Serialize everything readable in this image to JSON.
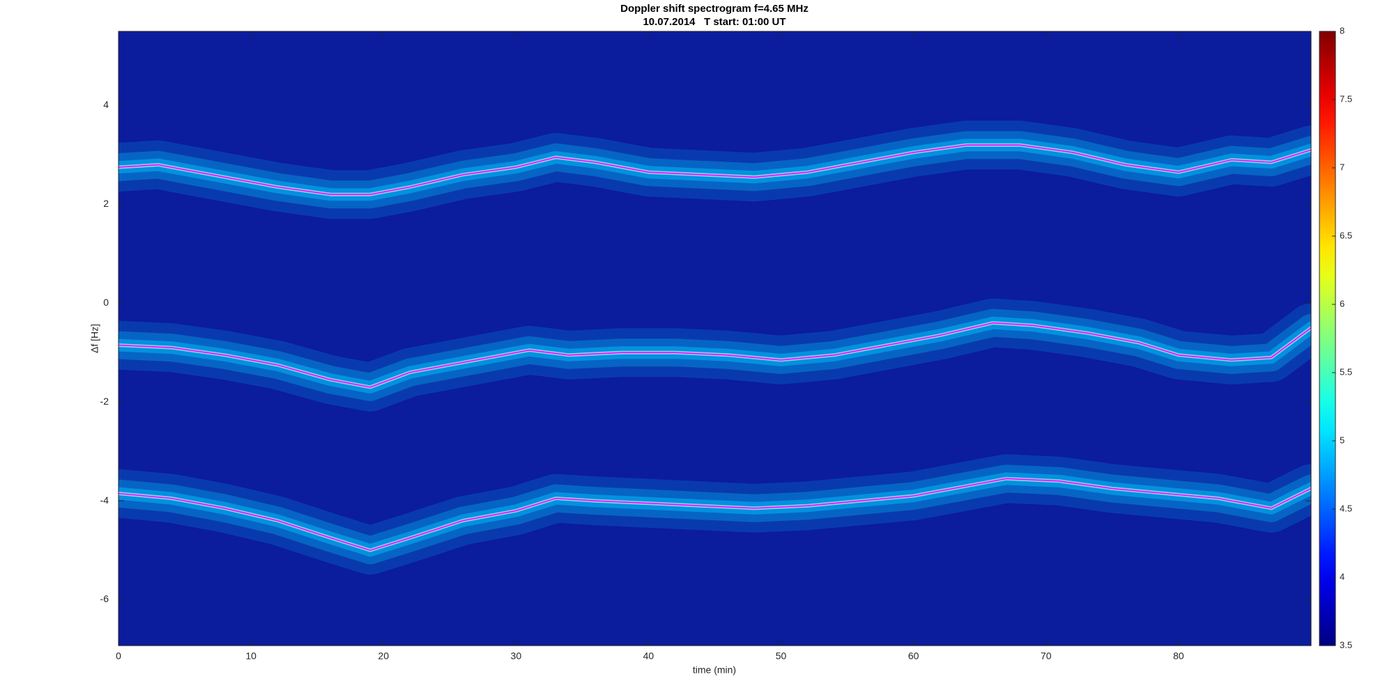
{
  "chart_data": {
    "type": "spectrogram",
    "title": "Doppler shift spectrogram f=4.65 MHz",
    "subtitle": "10.07.2014   T start: 01:00 UT",
    "x_label": "time (min)",
    "y_label": "Δf [Hz]",
    "xlim": [
      0,
      90
    ],
    "xticks": [
      0,
      10,
      20,
      30,
      40,
      50,
      60,
      70,
      80
    ],
    "ylim": [
      -6.93,
      5.5
    ],
    "yticks": [
      -6,
      -4,
      -2,
      0,
      2,
      4
    ],
    "line_color": "#ff00ff",
    "band_color": "#00c8ff",
    "series": [
      {
        "x": [
          0,
          3,
          5,
          8,
          12,
          16,
          19,
          22,
          26,
          30,
          33,
          36,
          40,
          44,
          48,
          52,
          56,
          60,
          64,
          68,
          72,
          76,
          80,
          84,
          87,
          90
        ],
        "values": [
          2.75,
          2.8,
          2.7,
          2.55,
          2.35,
          2.2,
          2.2,
          2.35,
          2.6,
          2.75,
          2.95,
          2.85,
          2.65,
          2.6,
          2.55,
          2.65,
          2.85,
          3.05,
          3.2,
          3.2,
          3.05,
          2.8,
          2.65,
          2.9,
          2.85,
          3.1
        ]
      },
      {
        "x": [
          0,
          4,
          8,
          12,
          16,
          19,
          22,
          26,
          28,
          31,
          34,
          38,
          42,
          46,
          50,
          54,
          58,
          62,
          66,
          69,
          73,
          77,
          80,
          84,
          87,
          90
        ],
        "values": [
          -0.85,
          -0.9,
          -1.05,
          -1.25,
          -1.55,
          -1.7,
          -1.4,
          -1.2,
          -1.1,
          -0.95,
          -1.05,
          -1.0,
          -1.0,
          -1.05,
          -1.15,
          -1.05,
          -0.85,
          -0.65,
          -0.4,
          -0.45,
          -0.6,
          -0.8,
          -1.05,
          -1.15,
          -1.1,
          -0.5
        ]
      },
      {
        "x": [
          0,
          4,
          8,
          12,
          16,
          19,
          22,
          26,
          30,
          33,
          36,
          40,
          44,
          48,
          52,
          56,
          60,
          64,
          67,
          71,
          75,
          79,
          83,
          87,
          90
        ],
        "values": [
          -3.85,
          -3.95,
          -4.15,
          -4.4,
          -4.75,
          -5.0,
          -4.75,
          -4.4,
          -4.2,
          -3.95,
          -4.0,
          -4.05,
          -4.1,
          -4.15,
          -4.1,
          -4.0,
          -3.9,
          -3.7,
          -3.55,
          -3.6,
          -3.75,
          -3.85,
          -3.95,
          -4.15,
          -3.75
        ]
      }
    ],
    "colorbar": {
      "colormap": "jet",
      "lim": [
        3.5,
        8
      ],
      "ticks": [
        3.5,
        4,
        4.5,
        5,
        5.5,
        6,
        6.5,
        7,
        7.5,
        8
      ]
    }
  }
}
